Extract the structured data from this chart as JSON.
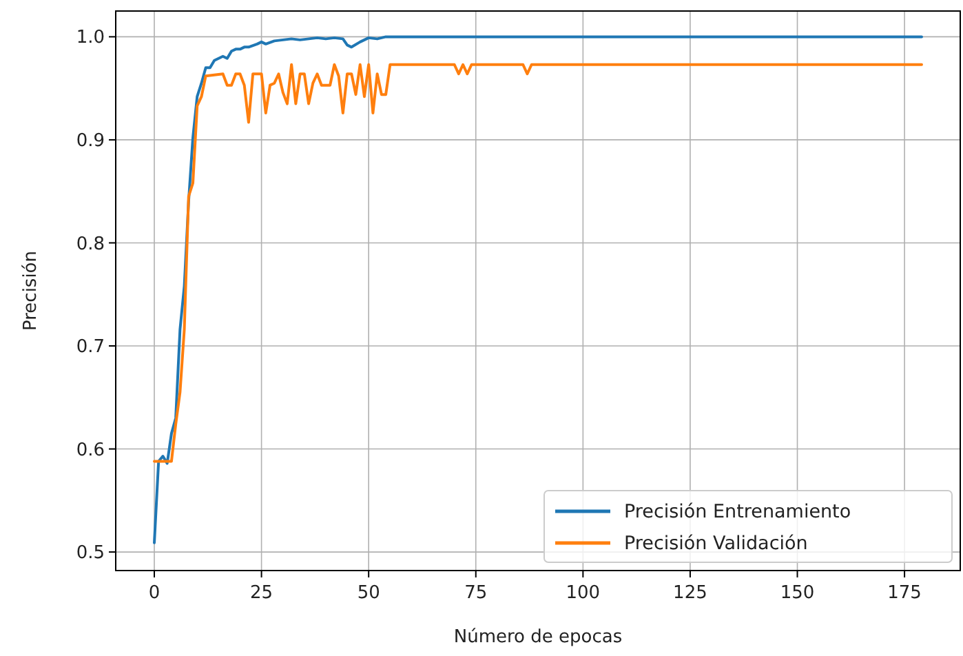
{
  "chart_data": {
    "type": "line",
    "xlabel": "Número de epocas",
    "ylabel": "Precisión",
    "xlim": [
      -9,
      188
    ],
    "ylim": [
      0.482,
      1.025
    ],
    "xticks": [
      0,
      25,
      50,
      75,
      100,
      125,
      150,
      175
    ],
    "yticks": [
      0.5,
      0.6,
      0.7,
      0.8,
      0.9,
      {
        "value": 1,
        "label": "1.0"
      }
    ],
    "grid": true,
    "legend": "bottom right",
    "line_style": "solid",
    "series": [
      {
        "name": "Precisión Entrenamiento",
        "color": "#1f77b4",
        "x": [
          0,
          1,
          2,
          3,
          4,
          5,
          6,
          7,
          8,
          9,
          10,
          11,
          12,
          13,
          14,
          15,
          16,
          17,
          18,
          19,
          20,
          21,
          22,
          24,
          25,
          26,
          28,
          30,
          32,
          34,
          36,
          38,
          40,
          42,
          44,
          45,
          46,
          48,
          50,
          52,
          54,
          56,
          179
        ],
        "values": [
          0.509,
          0.588,
          0.593,
          0.586,
          0.615,
          0.63,
          0.716,
          0.758,
          0.84,
          0.902,
          0.942,
          0.955,
          0.97,
          0.97,
          0.977,
          0.979,
          0.981,
          0.979,
          0.986,
          0.988,
          0.988,
          0.99,
          0.99,
          0.993,
          0.995,
          0.993,
          0.996,
          0.997,
          0.998,
          0.997,
          0.998,
          0.999,
          0.998,
          0.999,
          0.998,
          0.992,
          0.99,
          0.995,
          0.999,
          0.998,
          1.0,
          1.0,
          1.0
        ]
      },
      {
        "name": "Precisión Validación",
        "color": "#ff7f0e",
        "x": [
          0,
          4,
          5,
          6,
          7,
          8,
          9,
          10,
          11,
          12,
          16,
          17,
          18,
          19,
          20,
          21,
          22,
          23,
          25,
          26,
          27,
          28,
          29,
          30,
          31,
          32,
          33,
          34,
          35,
          36,
          37,
          38,
          39,
          41,
          42,
          43,
          44,
          45,
          46,
          47,
          48,
          49,
          50,
          51,
          52,
          53,
          54,
          55,
          70,
          71,
          72,
          73,
          74,
          86,
          87,
          88,
          179
        ],
        "values": [
          0.588,
          0.588,
          0.624,
          0.655,
          0.716,
          0.845,
          0.858,
          0.933,
          0.942,
          0.962,
          0.964,
          0.953,
          0.953,
          0.964,
          0.964,
          0.953,
          0.917,
          0.964,
          0.964,
          0.926,
          0.953,
          0.955,
          0.964,
          0.946,
          0.935,
          0.973,
          0.935,
          0.964,
          0.964,
          0.935,
          0.955,
          0.964,
          0.953,
          0.953,
          0.973,
          0.962,
          0.926,
          0.964,
          0.964,
          0.944,
          0.973,
          0.942,
          0.973,
          0.926,
          0.964,
          0.944,
          0.944,
          0.973,
          0.973,
          0.964,
          0.973,
          0.964,
          0.973,
          0.973,
          0.964,
          0.973,
          0.973
        ]
      }
    ]
  }
}
